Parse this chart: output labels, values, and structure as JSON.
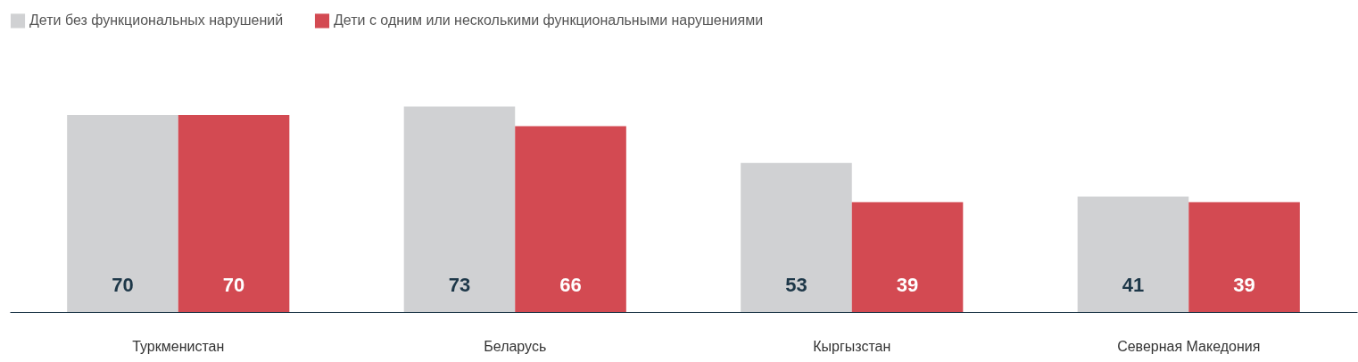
{
  "chart_data": {
    "type": "bar",
    "categories": [
      "Туркменистан",
      "Беларусь",
      "Кыргызстан",
      "Северная Македония"
    ],
    "series": [
      {
        "name": "Дети без функциональных нарушений",
        "color": "#d0d1d3",
        "values": [
          70,
          73,
          53,
          41
        ]
      },
      {
        "name": "Дети с одним или несколькими функциональными нарушениями",
        "color": "#d34a52",
        "values": [
          70,
          66,
          39,
          39
        ]
      }
    ],
    "data_labels": true,
    "legend": "top",
    "grid": false
  }
}
